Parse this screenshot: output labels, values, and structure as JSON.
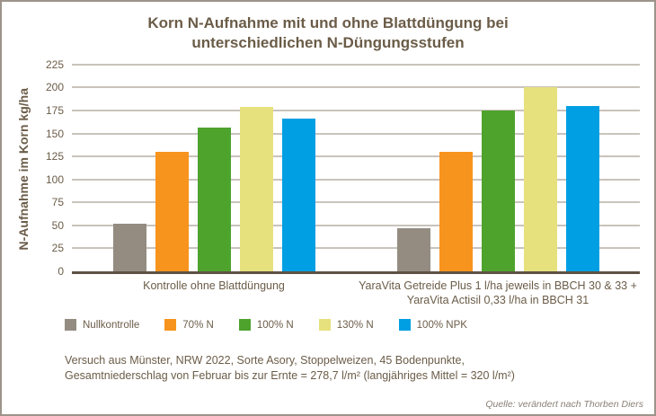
{
  "title": "Korn N-Aufnahme mit und ohne Blattdüngung bei unterschiedlichen N-Düngungsstufen",
  "chart_data": {
    "type": "bar",
    "categories": [
      "Kontrolle ohne Blattdüngung",
      "YaraVita Getreide Plus 1 l/ha jeweils in BBCH 30 & 33 + YaraVita Actisil 0,33 l/ha in BBCH 31"
    ],
    "series": [
      {
        "name": "Nullkontrolle",
        "color": "#948C81",
        "values": [
          52,
          47
        ]
      },
      {
        "name": "70% N",
        "color": "#F7941D",
        "values": [
          130,
          130
        ]
      },
      {
        "name": "100% N",
        "color": "#4EA32D",
        "values": [
          156,
          175
        ]
      },
      {
        "name": "130% N",
        "color": "#E6E17D",
        "values": [
          179,
          200
        ]
      },
      {
        "name": "100% NPK",
        "color": "#009FE3",
        "values": [
          166,
          180
        ]
      }
    ],
    "ylabel": "N-Aufnahme im Korn kg/ha",
    "xlabel": "",
    "ylim": [
      0,
      225
    ],
    "ytick_step": 25,
    "grid": true,
    "legend_position": "bottom"
  },
  "footer": {
    "lines": [
      "Versuch aus Münster, NRW 2022, Sorte Asory, Stoppelweizen, 45 Bodenpunkte,",
      "Gesamtniederschlag von Februar bis zur Ernte = 278,7 l/m² (langjähriges Mittel = 320 l/m²)"
    ],
    "source": "Quelle: verändert nach Thorben Diers"
  },
  "colors": {
    "text": "#6B5C48",
    "grid": "#C9C3BC",
    "axis": "#5E5244",
    "border": "#9C948A",
    "background": "#FFFFFF",
    "source_text": "#8A8177"
  }
}
